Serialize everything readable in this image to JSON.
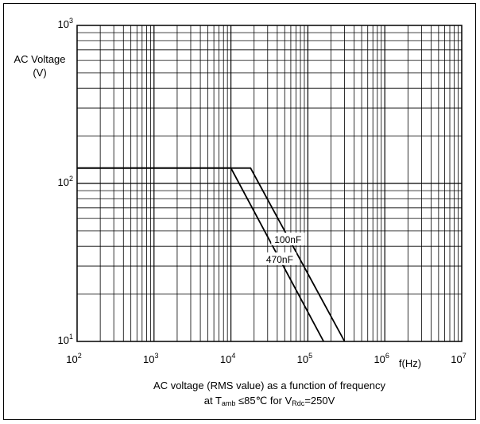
{
  "chart_data": {
    "type": "line",
    "title": "",
    "ylabel": {
      "line1": "AC Voltage",
      "line2": "(V)"
    },
    "xlabel": "f(Hz)",
    "x_scale": "log",
    "y_scale": "log",
    "xlim": [
      100,
      10000000
    ],
    "ylim": [
      10,
      1000
    ],
    "x_ticks": [
      {
        "base": "10",
        "exp": "2",
        "value": 100
      },
      {
        "base": "10",
        "exp": "3",
        "value": 1000
      },
      {
        "base": "10",
        "exp": "4",
        "value": 10000
      },
      {
        "base": "10",
        "exp": "5",
        "value": 100000
      },
      {
        "base": "10",
        "exp": "6",
        "value": 1000000
      },
      {
        "base": "10",
        "exp": "7",
        "value": 10000000
      }
    ],
    "y_ticks": [
      {
        "base": "10",
        "exp": "1",
        "value": 10
      },
      {
        "base": "10",
        "exp": "2",
        "value": 100
      },
      {
        "base": "10",
        "exp": "3",
        "value": 1000
      }
    ],
    "grid": true,
    "series": [
      {
        "name": "100nF",
        "points": [
          [
            100,
            125
          ],
          [
            18000,
            125
          ],
          [
            300000,
            10
          ]
        ]
      },
      {
        "name": "470nF",
        "points": [
          [
            100,
            125
          ],
          [
            10000,
            125
          ],
          [
            160000,
            10
          ]
        ]
      }
    ],
    "caption": {
      "line1": "AC voltage (RMS value) as a function of frequency",
      "line2_part1": "at T",
      "line2_sub1": "amb",
      "line2_part2": " ≤85℃  for V",
      "line2_sub2": "Rdc",
      "line2_part3": "=250V"
    }
  }
}
